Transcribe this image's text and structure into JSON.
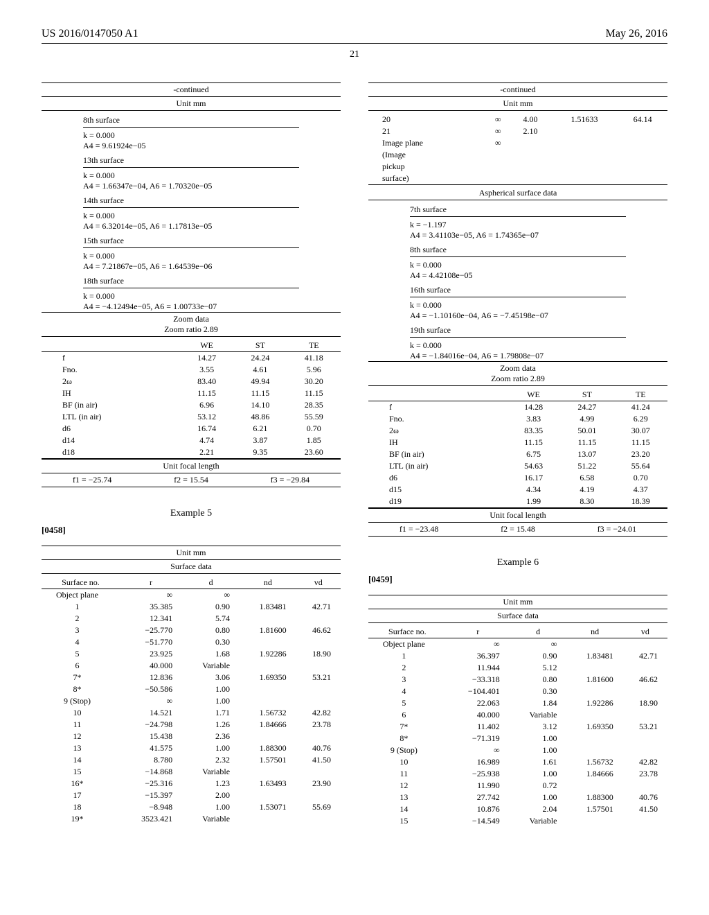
{
  "header": {
    "left": "US 2016/0147050 A1",
    "right": "May 26, 2016",
    "page": "21"
  },
  "left": {
    "cont": "-continued",
    "unit": "Unit mm",
    "aspheric": [
      {
        "label": "8th surface",
        "lines": [
          "k = 0.000",
          "A4 = 9.61924e−05"
        ]
      },
      {
        "label": "13th surface",
        "lines": [
          "k = 0.000",
          "A4 = 1.66347e−04, A6 = 1.70320e−05"
        ]
      },
      {
        "label": "14th surface",
        "lines": [
          "k = 0.000",
          "A4 = 6.32014e−05, A6 = 1.17813e−05"
        ]
      },
      {
        "label": "15th surface",
        "lines": [
          "k = 0.000",
          "A4 = 7.21867e−05, A6 = 1.64539e−06"
        ]
      },
      {
        "label": "18th surface",
        "lines": [
          "k = 0.000",
          "A4 = −4.12494e−05, A6 = 1.00733e−07"
        ]
      }
    ],
    "zoom": {
      "title1": "Zoom data",
      "title2": "Zoom ratio 2.89",
      "cols": [
        "",
        "WE",
        "ST",
        "TE"
      ],
      "rows": [
        [
          "f",
          "14.27",
          "24.24",
          "41.18"
        ],
        [
          "Fno.",
          "3.55",
          "4.61",
          "5.96"
        ],
        [
          "2ω",
          "83.40",
          "49.94",
          "30.20"
        ],
        [
          "IH",
          "11.15",
          "11.15",
          "11.15"
        ],
        [
          "BF (in air)",
          "6.96",
          "14.10",
          "28.35"
        ],
        [
          "LTL (in air)",
          "53.12",
          "48.86",
          "55.59"
        ],
        [
          "d6",
          "16.74",
          "6.21",
          "0.70"
        ],
        [
          "d14",
          "4.74",
          "3.87",
          "1.85"
        ],
        [
          "d18",
          "2.21",
          "9.35",
          "23.60"
        ]
      ]
    },
    "ufl": {
      "label": "Unit focal length",
      "vals": [
        "f1 = −25.74",
        "f2 = 15.54",
        "f3 = −29.84"
      ]
    },
    "ex5": {
      "title": "Example 5",
      "para": "[0458]"
    },
    "surf5": {
      "unit": "Unit mm",
      "title": "Surface data",
      "cols": [
        "Surface no.",
        "r",
        "d",
        "nd",
        "vd"
      ],
      "rows": [
        [
          "Object plane",
          "∞",
          "∞",
          "",
          ""
        ],
        [
          "1",
          "35.385",
          "0.90",
          "1.83481",
          "42.71"
        ],
        [
          "2",
          "12.341",
          "5.74",
          "",
          ""
        ],
        [
          "3",
          "−25.770",
          "0.80",
          "1.81600",
          "46.62"
        ],
        [
          "4",
          "−51.770",
          "0.30",
          "",
          ""
        ],
        [
          "5",
          "23.925",
          "1.68",
          "1.92286",
          "18.90"
        ],
        [
          "6",
          "40.000",
          "Variable",
          "",
          ""
        ],
        [
          "7*",
          "12.836",
          "3.06",
          "1.69350",
          "53.21"
        ],
        [
          "8*",
          "−50.586",
          "1.00",
          "",
          ""
        ],
        [
          "9 (Stop)",
          "∞",
          "1.00",
          "",
          ""
        ],
        [
          "10",
          "14.521",
          "1.71",
          "1.56732",
          "42.82"
        ],
        [
          "11",
          "−24.798",
          "1.26",
          "1.84666",
          "23.78"
        ],
        [
          "12",
          "15.438",
          "2.36",
          "",
          ""
        ],
        [
          "13",
          "41.575",
          "1.00",
          "1.88300",
          "40.76"
        ],
        [
          "14",
          "8.780",
          "2.32",
          "1.57501",
          "41.50"
        ],
        [
          "15",
          "−14.868",
          "Variable",
          "",
          ""
        ],
        [
          "16*",
          "−25.316",
          "1.23",
          "1.63493",
          "23.90"
        ],
        [
          "17",
          "−15.397",
          "2.00",
          "",
          ""
        ],
        [
          "18",
          "−8.948",
          "1.00",
          "1.53071",
          "55.69"
        ],
        [
          "19*",
          "3523.421",
          "Variable",
          "",
          ""
        ]
      ]
    }
  },
  "right": {
    "cont": "-continued",
    "unit": "Unit mm",
    "tail_rows": [
      [
        "20",
        "∞",
        "4.00",
        "1.51633",
        "64.14"
      ],
      [
        "21",
        "∞",
        "2.10",
        "",
        ""
      ],
      [
        "Image plane",
        "∞",
        "",
        "",
        ""
      ],
      [
        "(Image",
        "",
        "",
        "",
        ""
      ],
      [
        "pickup",
        "",
        "",
        "",
        ""
      ],
      [
        "surface)",
        "",
        "",
        "",
        ""
      ]
    ],
    "asph_title": "Aspherical surface data",
    "aspheric": [
      {
        "label": "7th surface",
        "lines": [
          "k = −1.197",
          "A4 = 3.41103e−05, A6 = 1.74365e−07"
        ]
      },
      {
        "label": "8th surface",
        "lines": [
          "k = 0.000",
          "A4 = 4.42108e−05"
        ]
      },
      {
        "label": "16th surface",
        "lines": [
          "k = 0.000",
          "A4 = −1.10160e−04, A6 = −7.45198e−07"
        ]
      },
      {
        "label": "19th surface",
        "lines": [
          "k = 0.000",
          "A4 = −1.84016e−04, A6 = 1.79808e−07"
        ]
      }
    ],
    "zoom": {
      "title1": "Zoom data",
      "title2": "Zoom ratio 2.89",
      "cols": [
        "",
        "WE",
        "ST",
        "TE"
      ],
      "rows": [
        [
          "f",
          "14.28",
          "24.27",
          "41.24"
        ],
        [
          "Fno.",
          "3.83",
          "4.99",
          "6.29"
        ],
        [
          "2ω",
          "83.35",
          "50.01",
          "30.07"
        ],
        [
          "IH",
          "11.15",
          "11.15",
          "11.15"
        ],
        [
          "BF (in air)",
          "6.75",
          "13.07",
          "23.20"
        ],
        [
          "LTL (in air)",
          "54.63",
          "51.22",
          "55.64"
        ],
        [
          "d6",
          "16.17",
          "6.58",
          "0.70"
        ],
        [
          "d15",
          "4.34",
          "4.19",
          "4.37"
        ],
        [
          "d19",
          "1.99",
          "8.30",
          "18.39"
        ]
      ]
    },
    "ufl": {
      "label": "Unit focal length",
      "vals": [
        "f1 = −23.48",
        "f2 = 15.48",
        "f3 = −24.01"
      ]
    },
    "ex6": {
      "title": "Example 6",
      "para": "[0459]"
    },
    "surf6": {
      "unit": "Unit mm",
      "title": "Surface data",
      "cols": [
        "Surface no.",
        "r",
        "d",
        "nd",
        "vd"
      ],
      "rows": [
        [
          "Object plane",
          "∞",
          "∞",
          "",
          ""
        ],
        [
          "1",
          "36.397",
          "0.90",
          "1.83481",
          "42.71"
        ],
        [
          "2",
          "11.944",
          "5.12",
          "",
          ""
        ],
        [
          "3",
          "−33.318",
          "0.80",
          "1.81600",
          "46.62"
        ],
        [
          "4",
          "−104.401",
          "0.30",
          "",
          ""
        ],
        [
          "5",
          "22.063",
          "1.84",
          "1.92286",
          "18.90"
        ],
        [
          "6",
          "40.000",
          "Variable",
          "",
          ""
        ],
        [
          "7*",
          "11.402",
          "3.12",
          "1.69350",
          "53.21"
        ],
        [
          "8*",
          "−71.319",
          "1.00",
          "",
          ""
        ],
        [
          "9 (Stop)",
          "∞",
          "1.00",
          "",
          ""
        ],
        [
          "10",
          "16.989",
          "1.61",
          "1.56732",
          "42.82"
        ],
        [
          "11",
          "−25.938",
          "1.00",
          "1.84666",
          "23.78"
        ],
        [
          "12",
          "11.990",
          "0.72",
          "",
          ""
        ],
        [
          "13",
          "27.742",
          "1.00",
          "1.88300",
          "40.76"
        ],
        [
          "14",
          "10.876",
          "2.04",
          "1.57501",
          "41.50"
        ],
        [
          "15",
          "−14.549",
          "Variable",
          "",
          ""
        ]
      ]
    }
  }
}
